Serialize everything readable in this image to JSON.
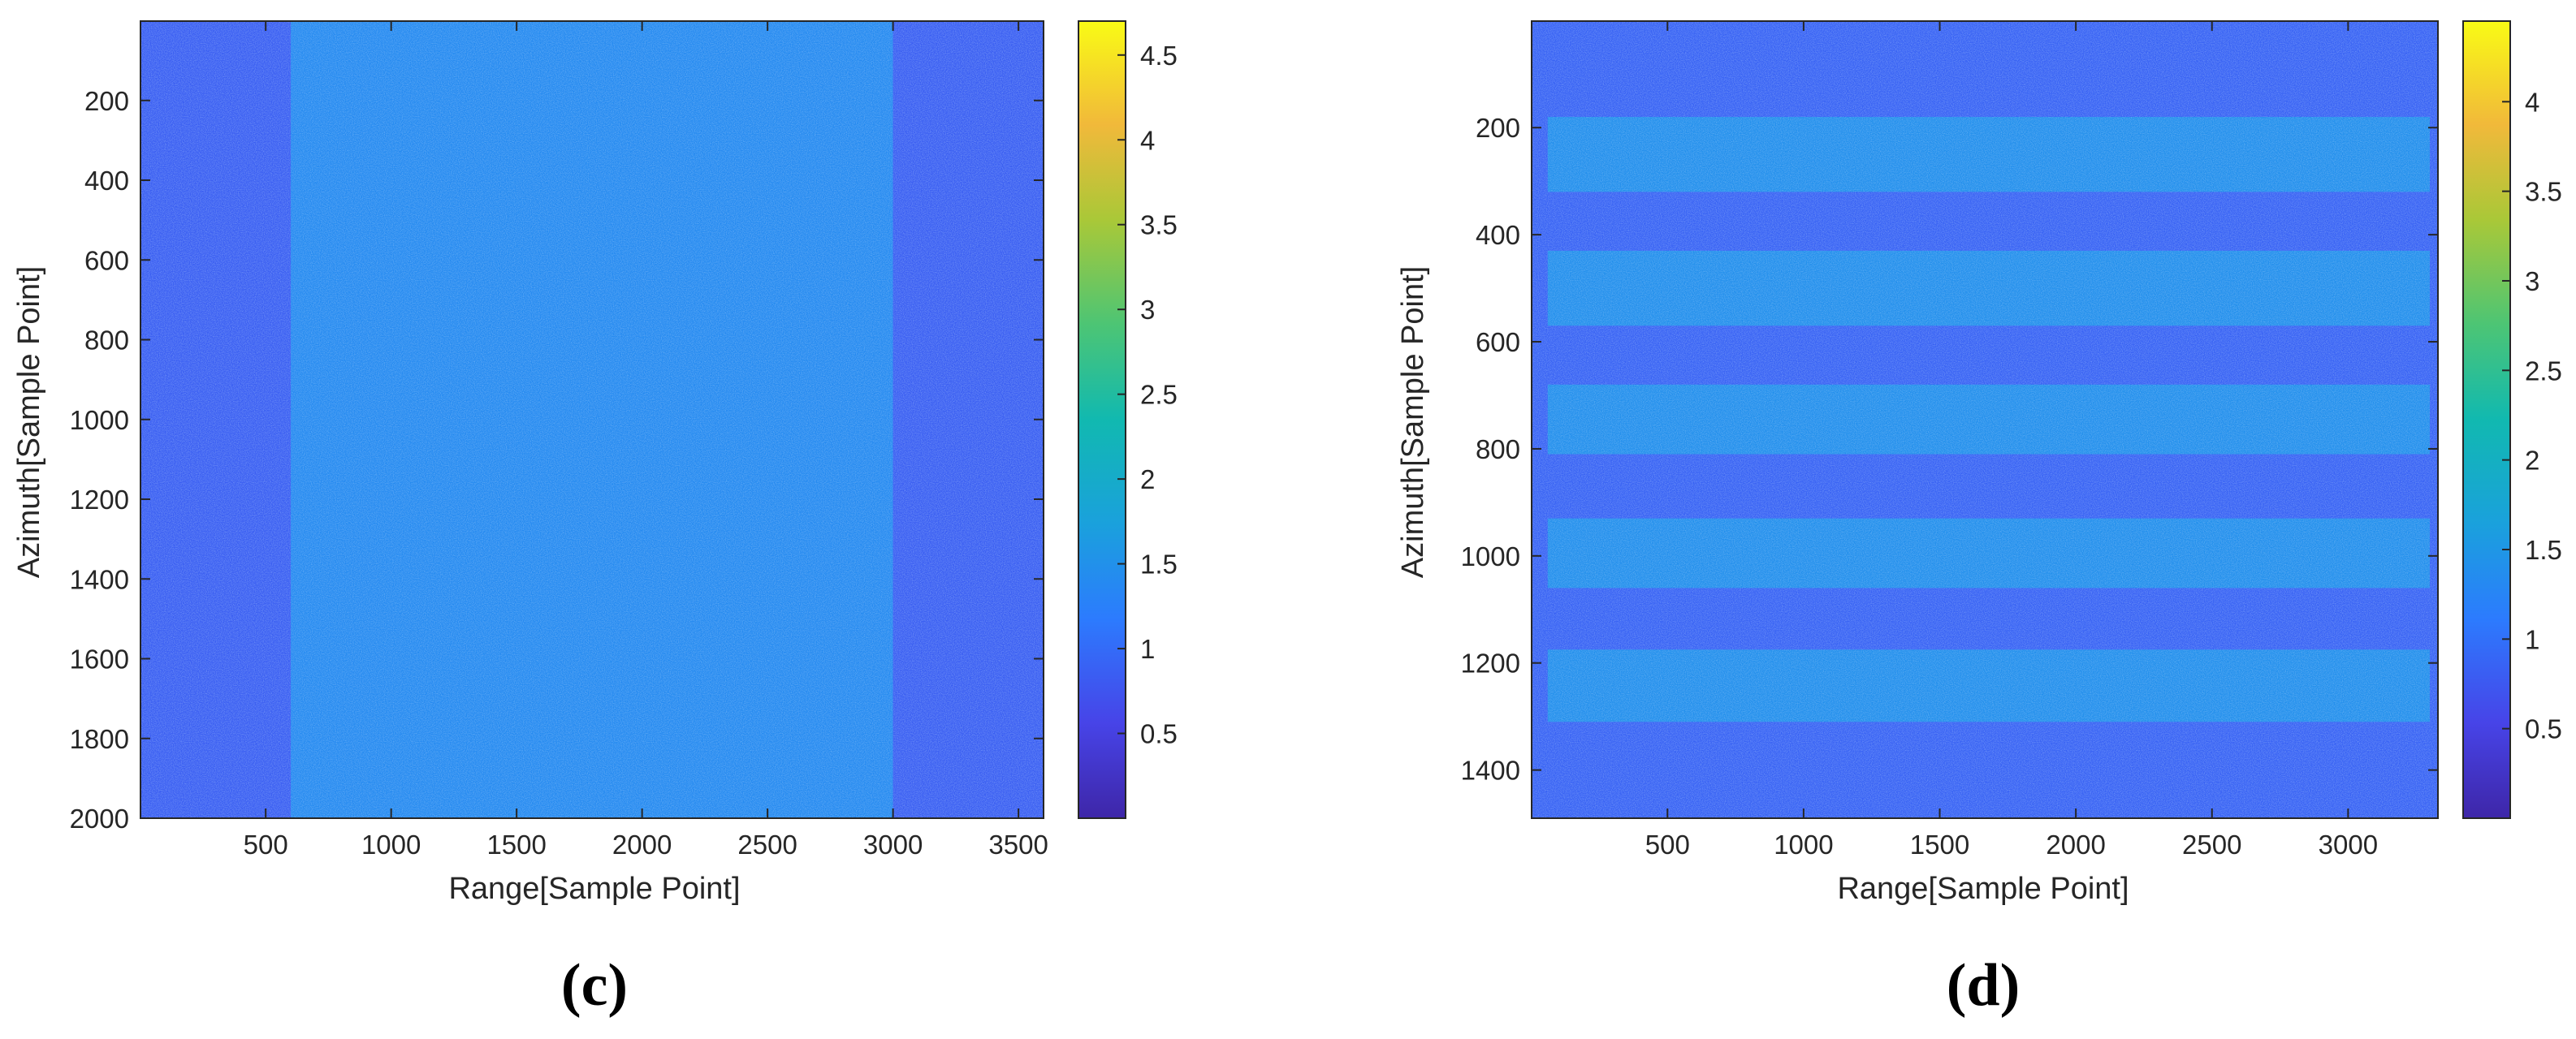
{
  "chart_data": [
    {
      "type": "heatmap",
      "panel_label": "(c)",
      "xlabel": "Range[Sample Point]",
      "ylabel": "Azimuth[Sample Point]",
      "xlim": [
        1,
        3600
      ],
      "ylim": [
        1,
        2000
      ],
      "y_reversed": true,
      "x_ticks": [
        500,
        1000,
        1500,
        2000,
        2500,
        3000,
        3500
      ],
      "y_ticks": [
        200,
        400,
        600,
        800,
        1000,
        1200,
        1400,
        1600,
        1800,
        2000
      ],
      "colorbar": {
        "colormap": "parula",
        "range": [
          0,
          4.7
        ],
        "ticks": [
          0.5,
          1,
          1.5,
          2,
          2.5,
          3,
          3.5,
          4,
          4.5
        ]
      },
      "regions": [
        {
          "orientation": "vertical",
          "start": 1,
          "end": 600,
          "mean_value": 0.85
        },
        {
          "orientation": "vertical",
          "start": 600,
          "end": 3000,
          "mean_value": 1.4
        },
        {
          "orientation": "vertical",
          "start": 3000,
          "end": 3600,
          "mean_value": 0.85
        }
      ]
    },
    {
      "type": "heatmap",
      "panel_label": "(d)",
      "xlabel": "Range[Sample Point]",
      "ylabel": "Azimuth[Sample Point]",
      "xlim": [
        1,
        3330
      ],
      "ylim": [
        1,
        1490
      ],
      "y_reversed": true,
      "x_ticks": [
        500,
        1000,
        1500,
        2000,
        2500,
        3000
      ],
      "y_ticks": [
        200,
        400,
        600,
        800,
        1000,
        1200,
        1400
      ],
      "colorbar": {
        "colormap": "parula",
        "range": [
          0,
          4.45
        ],
        "ticks": [
          0.5,
          1,
          1.5,
          2,
          2.5,
          3,
          3.5,
          4
        ]
      },
      "background_value": 0.85,
      "regions": [
        {
          "orientation": "horizontal",
          "start": 180,
          "end": 320,
          "x_start": 60,
          "x_end": 3300,
          "mean_value": 1.4
        },
        {
          "orientation": "horizontal",
          "start": 430,
          "end": 570,
          "x_start": 60,
          "x_end": 3300,
          "mean_value": 1.4
        },
        {
          "orientation": "horizontal",
          "start": 680,
          "end": 810,
          "x_start": 60,
          "x_end": 3300,
          "mean_value": 1.4
        },
        {
          "orientation": "horizontal",
          "start": 930,
          "end": 1060,
          "x_start": 60,
          "x_end": 3300,
          "mean_value": 1.4
        },
        {
          "orientation": "horizontal",
          "start": 1175,
          "end": 1310,
          "x_start": 60,
          "x_end": 3300,
          "mean_value": 1.4
        }
      ]
    }
  ]
}
